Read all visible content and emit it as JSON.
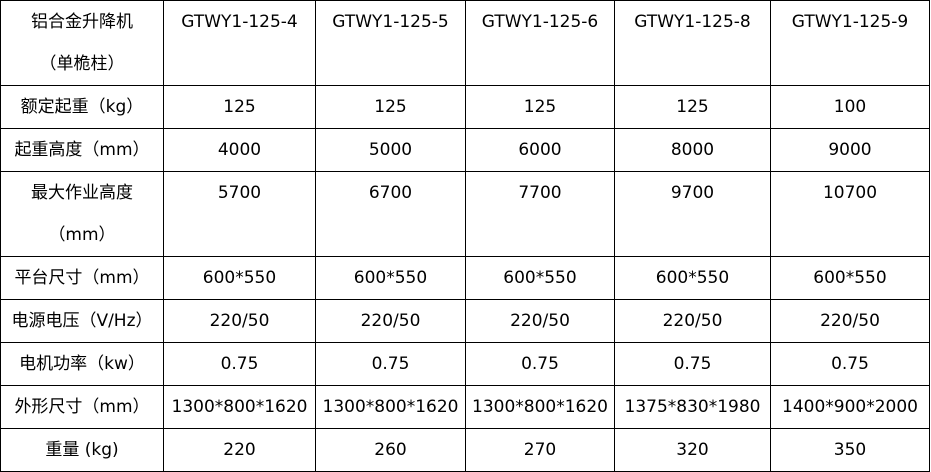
{
  "table": {
    "header": {
      "label": [
        "铝合金升降机",
        "（单桅柱）"
      ],
      "models": [
        "GTWY1-125-4",
        "GTWY1-125-5",
        "GTWY1-125-6",
        "GTWY1-125-8",
        "GTWY1-125-9"
      ]
    },
    "rows": [
      {
        "label": [
          "额定起重（kg）"
        ],
        "values": [
          "125",
          "125",
          "125",
          "125",
          "100"
        ]
      },
      {
        "label": [
          "起重高度（mm）"
        ],
        "values": [
          "4000",
          "5000",
          "6000",
          "8000",
          "9000"
        ]
      },
      {
        "label": [
          "最大作业高度",
          "（mm）"
        ],
        "values": [
          "5700",
          "6700",
          "7700",
          "9700",
          "10700"
        ]
      },
      {
        "label": [
          "平台尺寸（mm）"
        ],
        "values": [
          "600*550",
          "600*550",
          "600*550",
          "600*550",
          "600*550"
        ]
      },
      {
        "label": [
          "电源电压（V/Hz）"
        ],
        "values": [
          "220/50",
          "220/50",
          "220/50",
          "220/50",
          "220/50"
        ]
      },
      {
        "label": [
          "电机功率（kw）"
        ],
        "values": [
          "0.75",
          "0.75",
          "0.75",
          "0.75",
          "0.75"
        ]
      },
      {
        "label": [
          "外形尺寸（mm）"
        ],
        "values": [
          "1300*800*1620",
          "1300*800*1620",
          "1300*800*1620",
          "1375*830*1980",
          "1400*900*2000"
        ]
      },
      {
        "label": [
          "重量 (kg)"
        ],
        "values": [
          "220",
          "260",
          "270",
          "320",
          "350"
        ]
      }
    ]
  }
}
